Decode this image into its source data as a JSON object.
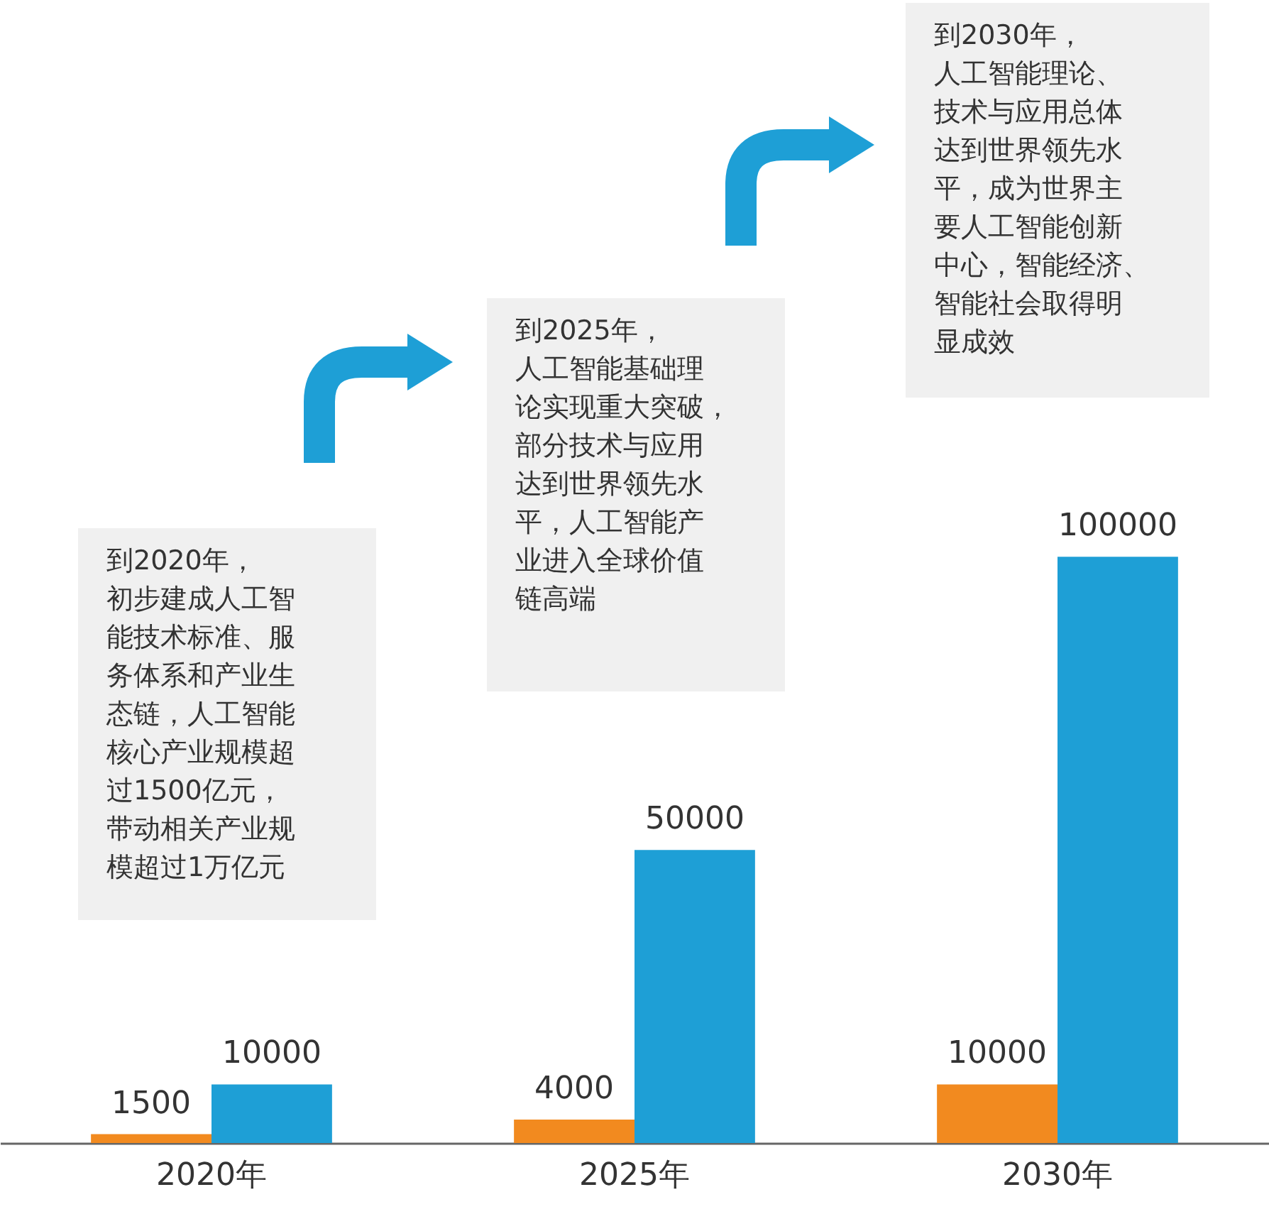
{
  "chart_data": {
    "type": "bar",
    "categories": [
      "2020年",
      "2025年",
      "2030年"
    ],
    "series": [
      {
        "color": "#f28a1f",
        "values": [
          1500,
          4000,
          10000
        ]
      },
      {
        "color": "#1e9fd6",
        "values": [
          10000,
          50000,
          100000
        ]
      }
    ],
    "data_labels": true,
    "annotations": [
      "到2020年，初步建成人工智能技术标准、服务体系和产业生态链，人工智能核心产业规模超过1500亿元，带动相关产业规模超过1万亿元",
      "到2025年，人工智能基础理论实现重大突破，部分技术与应用达到世界领先水平，人工智能产业进入全球价值链高端",
      "到2030年，人工智能理论、技术与应用总体达到世界领先水平，成为世界主要人工智能创新中心，智能经济、智能社会取得明显成效"
    ]
  }
}
